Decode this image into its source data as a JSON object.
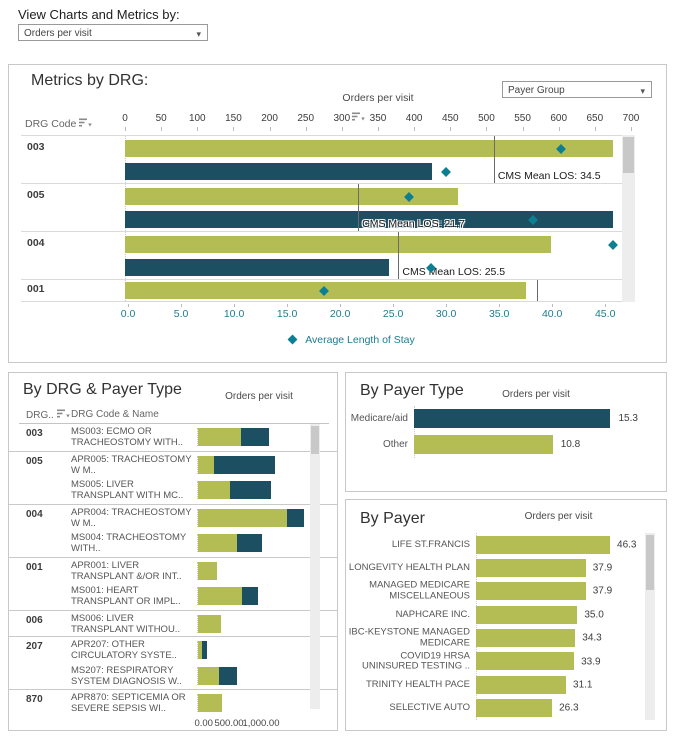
{
  "controls": {
    "view_by_label": "View Charts and Metrics by:",
    "view_by_value": "Orders per visit"
  },
  "colors": {
    "green": "#b4bd53",
    "blue": "#1d4f63",
    "teal": "#0c7f93",
    "teal_text": "#1b7d8f"
  },
  "metrics_panel": {
    "title": "Metrics by DRG:",
    "payer_group_dropdown": "Payer Group",
    "row_header": "DRG Code",
    "legend_label": "Average Length of Stay",
    "chart_data": {
      "type": "bar",
      "orientation": "horizontal",
      "top_axis": {
        "title": "Orders per visit",
        "range": [
          0,
          700
        ],
        "ticks": [
          0,
          50,
          100,
          150,
          200,
          250,
          300,
          350,
          400,
          450,
          500,
          550,
          600,
          650,
          700
        ]
      },
      "bottom_axis": {
        "title": "Average Length of Stay",
        "range": [
          0,
          45
        ],
        "ticks": [
          "0.0",
          "5.0",
          "10.0",
          "15.0",
          "20.0",
          "25.0",
          "30.0",
          "35.0",
          "40.0",
          "45.0"
        ]
      },
      "groups": [
        {
          "drg_code": "003",
          "bars": [
            {
              "color": "green",
              "orders_per_visit": 675,
              "avg_length_of_stay": 40.8
            },
            {
              "color": "blue",
              "orders_per_visit": 425,
              "avg_length_of_stay": 30.0
            }
          ],
          "cms_mean_los": 34.5,
          "cms_label": "CMS Mean LOS: 34.5"
        },
        {
          "drg_code": "005",
          "bars": [
            {
              "color": "green",
              "orders_per_visit": 460,
              "avg_length_of_stay": 26.5
            },
            {
              "color": "blue",
              "orders_per_visit": 675,
              "avg_length_of_stay": 38.2
            }
          ],
          "cms_mean_los": 21.7,
          "cms_label": "CMS Mean LOS: 21.7"
        },
        {
          "drg_code": "004",
          "bars": [
            {
              "color": "green",
              "orders_per_visit": 590,
              "avg_length_of_stay": 45.7
            },
            {
              "color": "blue",
              "orders_per_visit": 365,
              "avg_length_of_stay": 28.6
            }
          ],
          "cms_mean_los": 25.5,
          "cms_label": "CMS Mean LOS: 25.5"
        },
        {
          "drg_code": "001",
          "bars": [
            {
              "color": "green",
              "orders_per_visit": 555,
              "avg_length_of_stay": 18.5
            }
          ],
          "cms_mean_los": 38.6,
          "cms_label": ""
        }
      ]
    }
  },
  "drg_payer_panel": {
    "title": "By DRG & Payer Type",
    "axis_title": "Orders per visit",
    "col_drg_header": "DRG..",
    "col_name_header": "DRG Code & Name",
    "chart_data": {
      "type": "bar",
      "stacked": true,
      "x_max": 1750,
      "x_ticks": [
        {
          "value": 0,
          "label": "0.00"
        },
        {
          "value": 500,
          "label": "500.00"
        },
        {
          "value": 1000,
          "label": "1,000.00"
        }
      ],
      "rows": [
        {
          "drg_code": "003",
          "name": "MS003: ECMO OR TRACHEOSTOMY WITH..",
          "green": 675,
          "blue": 430,
          "group_start": true
        },
        {
          "drg_code": "005",
          "name": "APR005: TRACHEOSTOMY W M..",
          "green": 250,
          "blue": 950,
          "group_start": true
        },
        {
          "drg_code": "",
          "name": "MS005: LIVER TRANSPLANT WITH MC..",
          "green": 500,
          "blue": 640,
          "group_start": false
        },
        {
          "drg_code": "004",
          "name": "APR004: TRACHEOSTOMY W M..",
          "green": 1390,
          "blue": 265,
          "group_start": true
        },
        {
          "drg_code": "",
          "name": "MS004: TRACHEOSTOMY WITH..",
          "green": 610,
          "blue": 390,
          "group_start": false
        },
        {
          "drg_code": "001",
          "name": "APR001: LIVER TRANSPLANT &/OR INT..",
          "green": 295,
          "blue": 0,
          "group_start": true
        },
        {
          "drg_code": "",
          "name": "MS001: HEART TRANSPLANT OR IMPL..",
          "green": 685,
          "blue": 260,
          "group_start": false
        },
        {
          "drg_code": "006",
          "name": "MS006: LIVER TRANSPLANT WITHOU..",
          "green": 360,
          "blue": 0,
          "group_start": true
        },
        {
          "drg_code": "207",
          "name": "APR207: OTHER CIRCULATORY SYSTE..",
          "green": 65,
          "blue": 70,
          "group_start": true
        },
        {
          "drg_code": "",
          "name": "MS207: RESPIRATORY SYSTEM DIAGNOSIS W..",
          "green": 325,
          "blue": 290,
          "group_start": false
        },
        {
          "drg_code": "870",
          "name": "APR870: SEPTICEMIA OR SEVERE SEPSIS WI..",
          "green": 380,
          "blue": 0,
          "group_start": true
        }
      ]
    }
  },
  "payer_type_panel": {
    "title": "By Payer Type",
    "axis_title": "Orders per visit",
    "chart_data": {
      "type": "bar",
      "x_max": 19,
      "rows": [
        {
          "label": "Medicare/aid",
          "value": 15.3,
          "value_label": "15.3",
          "color": "blue"
        },
        {
          "label": "Other",
          "value": 10.8,
          "value_label": "10.8",
          "color": "green"
        }
      ]
    }
  },
  "payer_panel": {
    "title": "By Payer",
    "axis_title": "Orders per visit",
    "chart_data": {
      "type": "bar",
      "x_max": 57,
      "rows": [
        {
          "label": "LIFE ST.FRANCIS",
          "value": 46.3,
          "value_label": "46.3"
        },
        {
          "label": "LONGEVITY HEALTH PLAN",
          "value": 37.9,
          "value_label": "37.9"
        },
        {
          "label": "MANAGED MEDICARE MISCELLANEOUS",
          "value": 37.9,
          "value_label": "37.9"
        },
        {
          "label": "NAPHCARE INC.",
          "value": 35.0,
          "value_label": "35.0"
        },
        {
          "label": "IBC-KEYSTONE MANAGED MEDICARE",
          "value": 34.3,
          "value_label": "34.3"
        },
        {
          "label": "COVID19 HRSA UNINSURED TESTING ..",
          "value": 33.9,
          "value_label": "33.9"
        },
        {
          "label": "TRINITY HEALTH PACE",
          "value": 31.1,
          "value_label": "31.1"
        },
        {
          "label": "SELECTIVE AUTO",
          "value": 26.3,
          "value_label": "26.3"
        }
      ]
    }
  }
}
